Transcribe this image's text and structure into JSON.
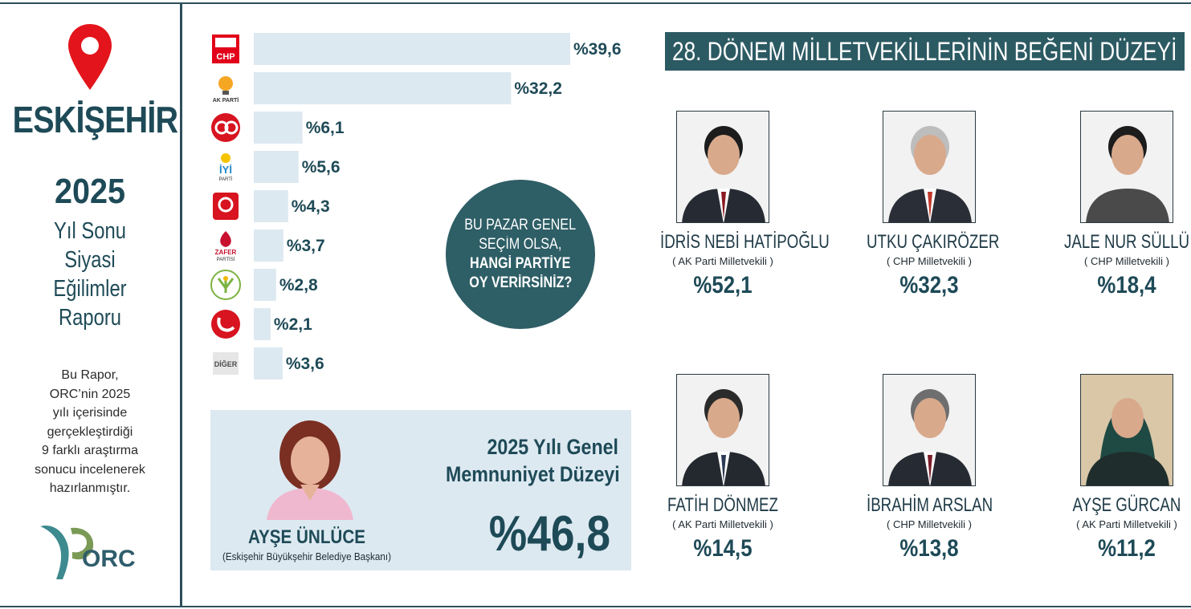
{
  "left": {
    "city": "ESKİŞEHİR",
    "year": "2025",
    "report_title": [
      "Yıl Sonu",
      "Siyasi",
      "Eğilimler",
      "Raporu"
    ],
    "description": [
      "Bu Rapor,",
      "ORC’nin 2025",
      "yılı içerisinde",
      "gerçekleştirdiği",
      "9 farklı araştırma",
      "sonucu incelenerek",
      "hazırlanmıştır."
    ],
    "logo_text": "ORC"
  },
  "question": {
    "lines": [
      "BU PAZAR GENEL",
      "SEÇİM OLSA,",
      "HANGİ PARTİYE",
      "OY VERİRSİNİZ?"
    ]
  },
  "chart_data": {
    "type": "bar",
    "orientation": "horizontal",
    "categories": [
      "CHP",
      "AK PARTİ",
      "MHP",
      "İYİ PARTİ",
      "BBP",
      "ZAFER PARTİSİ",
      "DEM PARTİ",
      "YENİDEN REFAH",
      "DİĞER"
    ],
    "values": [
      39.6,
      32.2,
      6.1,
      5.6,
      4.3,
      3.7,
      2.8,
      2.1,
      3.6
    ],
    "labels": [
      "%39,6",
      "%32,2",
      "%6,1",
      "%5,6",
      "%4,3",
      "%3,7",
      "%2,8",
      "%2,1",
      "%3,6"
    ],
    "xlim": [
      0,
      39.6
    ],
    "bar_color": "#dde9f1",
    "grid": false
  },
  "party_logos": [
    {
      "text": "CHP",
      "color": "#e2001a"
    },
    {
      "text": "AK PARTİ",
      "color": "#f5a623"
    },
    {
      "text": "",
      "color": "#d7141f"
    },
    {
      "text": "İYİ",
      "sub": "PARTİ",
      "color": "#1e88c8"
    },
    {
      "text": "",
      "color": "#d7141f"
    },
    {
      "text": "ZAFER",
      "sub": "PARTİSİ",
      "color": "#c8102e"
    },
    {
      "text": "",
      "color": "#7cb342"
    },
    {
      "text": "",
      "color": "#d7141f"
    },
    {
      "text": "DİĞER",
      "color": "#4a4a4a"
    }
  ],
  "mayor": {
    "name": "AYŞE ÜNLÜCE",
    "title": "(Eskişehir Büyükşehir Belediye Başkanı)",
    "satisfaction_title": [
      "2025 Yılı Genel",
      "Memnuniyet Düzeyi"
    ],
    "satisfaction_value": "%46,8"
  },
  "mps": {
    "banner": "28. DÖNEM MİLLETVEKİLLERİNİN BEĞENİ DÜZEYİ",
    "items": [
      {
        "name": "İDRİS NEBİ HATİPOĞLU",
        "party": "( AK Parti Milletvekili )",
        "pct": "%52,1",
        "value": 52.1,
        "suit": "#262b33",
        "tie": "#8b1a24",
        "hair": "#1c1c1c",
        "bg": "#f2f2f2"
      },
      {
        "name": "UTKU ÇAKIRÖZER",
        "party": "( CHP Milletvekili )",
        "pct": "%32,3",
        "value": 32.3,
        "suit": "#2a2f37",
        "tie": "#c0392b",
        "hair": "#bdbdbd",
        "bg": "#f2f2f2"
      },
      {
        "name": "JALE NUR SÜLLÜ",
        "party": "( CHP Milletvekili )",
        "pct": "%18,4",
        "value": 18.4,
        "suit": "#4a4a4a",
        "tie": "",
        "hair": "#1c1c1c",
        "bg": "#f2f2f2"
      },
      {
        "name": "FATİH DÖNMEZ",
        "party": "( AK Parti Milletvekili )",
        "pct": "%14,5",
        "value": 14.5,
        "suit": "#24292f",
        "tie": "#2d3a55",
        "hair": "#2b2b2b",
        "bg": "#f2f2f2"
      },
      {
        "name": "İBRAHİM ARSLAN",
        "party": "( CHP Milletvekili )",
        "pct": "%13,8",
        "value": 13.8,
        "suit": "#262b33",
        "tie": "#7b1e2b",
        "hair": "#6e6e6e",
        "bg": "#f2f2f2"
      },
      {
        "name": "AYŞE GÜRCAN",
        "party": "( AK Parti Milletvekili )",
        "pct": "%11,2",
        "value": 11.2,
        "suit": "#1f2e2c",
        "tie": "",
        "hair": "#1f4a44",
        "bg": "#d9c7a8"
      }
    ]
  }
}
